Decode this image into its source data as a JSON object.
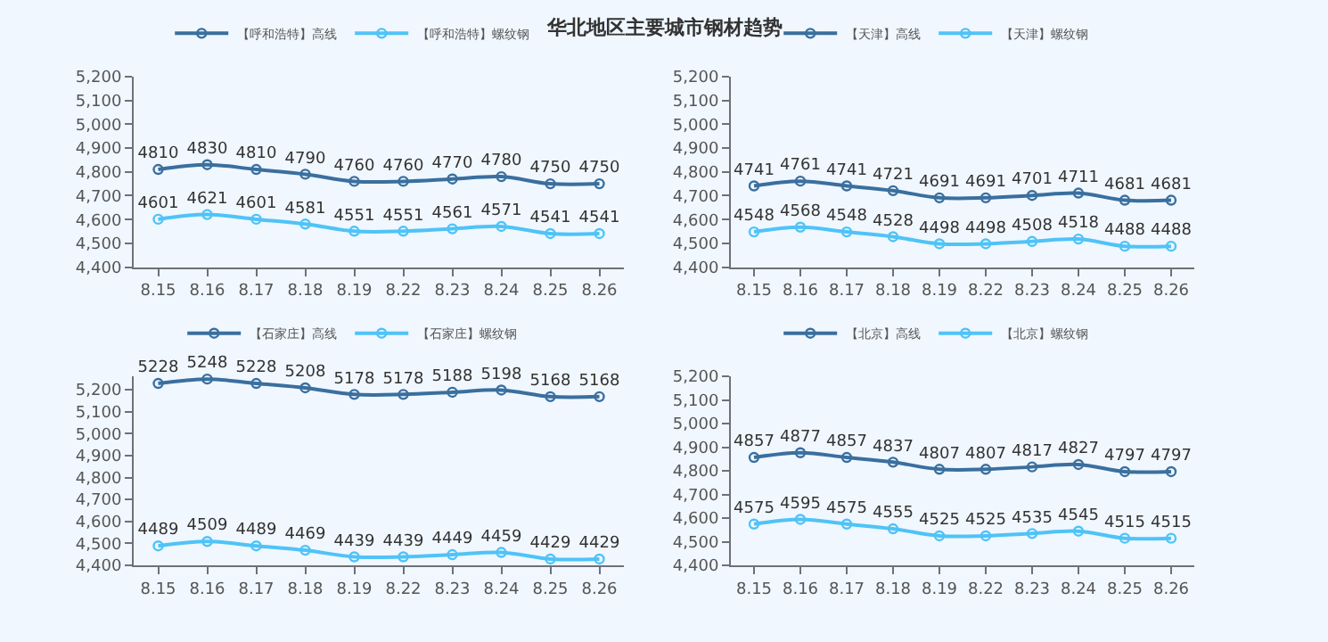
{
  "chart_data": [
    {
      "type": "line",
      "title": "华北地区主要城市钢材趋势",
      "categories": [
        "8.15",
        "8.16",
        "8.17",
        "8.18",
        "8.19",
        "8.22",
        "8.23",
        "8.24",
        "8.25",
        "8.26"
      ],
      "series": [
        {
          "name": "【呼和浩特】高线",
          "color": "#3a6f9e",
          "values": [
            4810,
            4830,
            4810,
            4790,
            4760,
            4760,
            4770,
            4780,
            4750,
            4750
          ]
        },
        {
          "name": "【呼和浩特】螺纹钢",
          "color": "#4fc3f7",
          "values": [
            4601,
            4621,
            4601,
            4581,
            4551,
            4551,
            4561,
            4571,
            4541,
            4541
          ]
        }
      ],
      "ylim": [
        4400,
        5200
      ],
      "yticks": [
        {
          "value": 4400,
          "label": "4,400"
        },
        {
          "value": 4500,
          "label": "4,500"
        },
        {
          "value": 4600,
          "label": "4,600"
        },
        {
          "value": 4700,
          "label": "4,700"
        },
        {
          "value": 4800,
          "label": "4,800"
        },
        {
          "value": 4900,
          "label": "4,900"
        },
        {
          "value": 5000,
          "label": "5,000"
        },
        {
          "value": 5100,
          "label": "5,100"
        },
        {
          "value": 5200,
          "label": "5,200"
        }
      ],
      "grid": false,
      "legend": "top",
      "marker": "circle",
      "line_style": "solid",
      "data_labels": true
    },
    {
      "type": "line",
      "categories": [
        "8.15",
        "8.16",
        "8.17",
        "8.18",
        "8.19",
        "8.22",
        "8.23",
        "8.24",
        "8.25",
        "8.26"
      ],
      "series": [
        {
          "name": "【天津】高线",
          "color": "#3a6f9e",
          "values": [
            4741,
            4761,
            4741,
            4721,
            4691,
            4691,
            4701,
            4711,
            4681,
            4681
          ]
        },
        {
          "name": "【天津】螺纹钢",
          "color": "#4fc3f7",
          "values": [
            4548,
            4568,
            4548,
            4528,
            4498,
            4498,
            4508,
            4518,
            4488,
            4488
          ]
        }
      ],
      "ylim": [
        4400,
        5200
      ],
      "yticks": [
        {
          "value": 4400,
          "label": "4,400"
        },
        {
          "value": 4500,
          "label": "4,500"
        },
        {
          "value": 4600,
          "label": "4,600"
        },
        {
          "value": 4700,
          "label": "4,700"
        },
        {
          "value": 4800,
          "label": "4,800"
        },
        {
          "value": 4900,
          "label": "4,900"
        },
        {
          "value": 5000,
          "label": "5,000"
        },
        {
          "value": 5100,
          "label": "5,100"
        },
        {
          "value": 5200,
          "label": "5,200"
        }
      ],
      "grid": false,
      "legend": "top",
      "marker": "circle",
      "line_style": "solid",
      "data_labels": true
    },
    {
      "type": "line",
      "categories": [
        "8.15",
        "8.16",
        "8.17",
        "8.18",
        "8.19",
        "8.22",
        "8.23",
        "8.24",
        "8.25",
        "8.26"
      ],
      "series": [
        {
          "name": "【石家庄】高线",
          "color": "#3a6f9e",
          "values": [
            5228,
            5248,
            5228,
            5208,
            5178,
            5178,
            5188,
            5198,
            5168,
            5168
          ]
        },
        {
          "name": "【石家庄】螺纹钢",
          "color": "#4fc3f7",
          "values": [
            4489,
            4509,
            4489,
            4469,
            4439,
            4439,
            4449,
            4459,
            4429,
            4429
          ]
        }
      ],
      "ylim": [
        4400,
        5260
      ],
      "yticks": [
        {
          "value": 4400,
          "label": "4,400"
        },
        {
          "value": 4500,
          "label": "4,500"
        },
        {
          "value": 4600,
          "label": "4,600"
        },
        {
          "value": 4700,
          "label": "4,700"
        },
        {
          "value": 4800,
          "label": "4,800"
        },
        {
          "value": 4900,
          "label": "4,900"
        },
        {
          "value": 5000,
          "label": "5,000"
        },
        {
          "value": 5100,
          "label": "5,100"
        },
        {
          "value": 5200,
          "label": "5,200"
        }
      ],
      "grid": false,
      "legend": "top",
      "marker": "circle",
      "line_style": "solid",
      "data_labels": true
    },
    {
      "type": "line",
      "categories": [
        "8.15",
        "8.16",
        "8.17",
        "8.18",
        "8.19",
        "8.22",
        "8.23",
        "8.24",
        "8.25",
        "8.26"
      ],
      "series": [
        {
          "name": "【北京】高线",
          "color": "#3a6f9e",
          "values": [
            4857,
            4877,
            4857,
            4837,
            4807,
            4807,
            4817,
            4827,
            4797,
            4797
          ]
        },
        {
          "name": "【北京】螺纹钢",
          "color": "#4fc3f7",
          "values": [
            4575,
            4595,
            4575,
            4555,
            4525,
            4525,
            4535,
            4545,
            4515,
            4515
          ]
        }
      ],
      "ylim": [
        4400,
        5200
      ],
      "yticks": [
        {
          "value": 4400,
          "label": "4,400"
        },
        {
          "value": 4500,
          "label": "4,500"
        },
        {
          "value": 4600,
          "label": "4,600"
        },
        {
          "value": 4700,
          "label": "4,700"
        },
        {
          "value": 4800,
          "label": "4,800"
        },
        {
          "value": 4900,
          "label": "4,900"
        },
        {
          "value": 5000,
          "label": "5,000"
        },
        {
          "value": 5100,
          "label": "5,100"
        },
        {
          "value": 5200,
          "label": "5,200"
        }
      ],
      "grid": false,
      "legend": "top",
      "marker": "circle",
      "line_style": "solid",
      "data_labels": true
    }
  ]
}
